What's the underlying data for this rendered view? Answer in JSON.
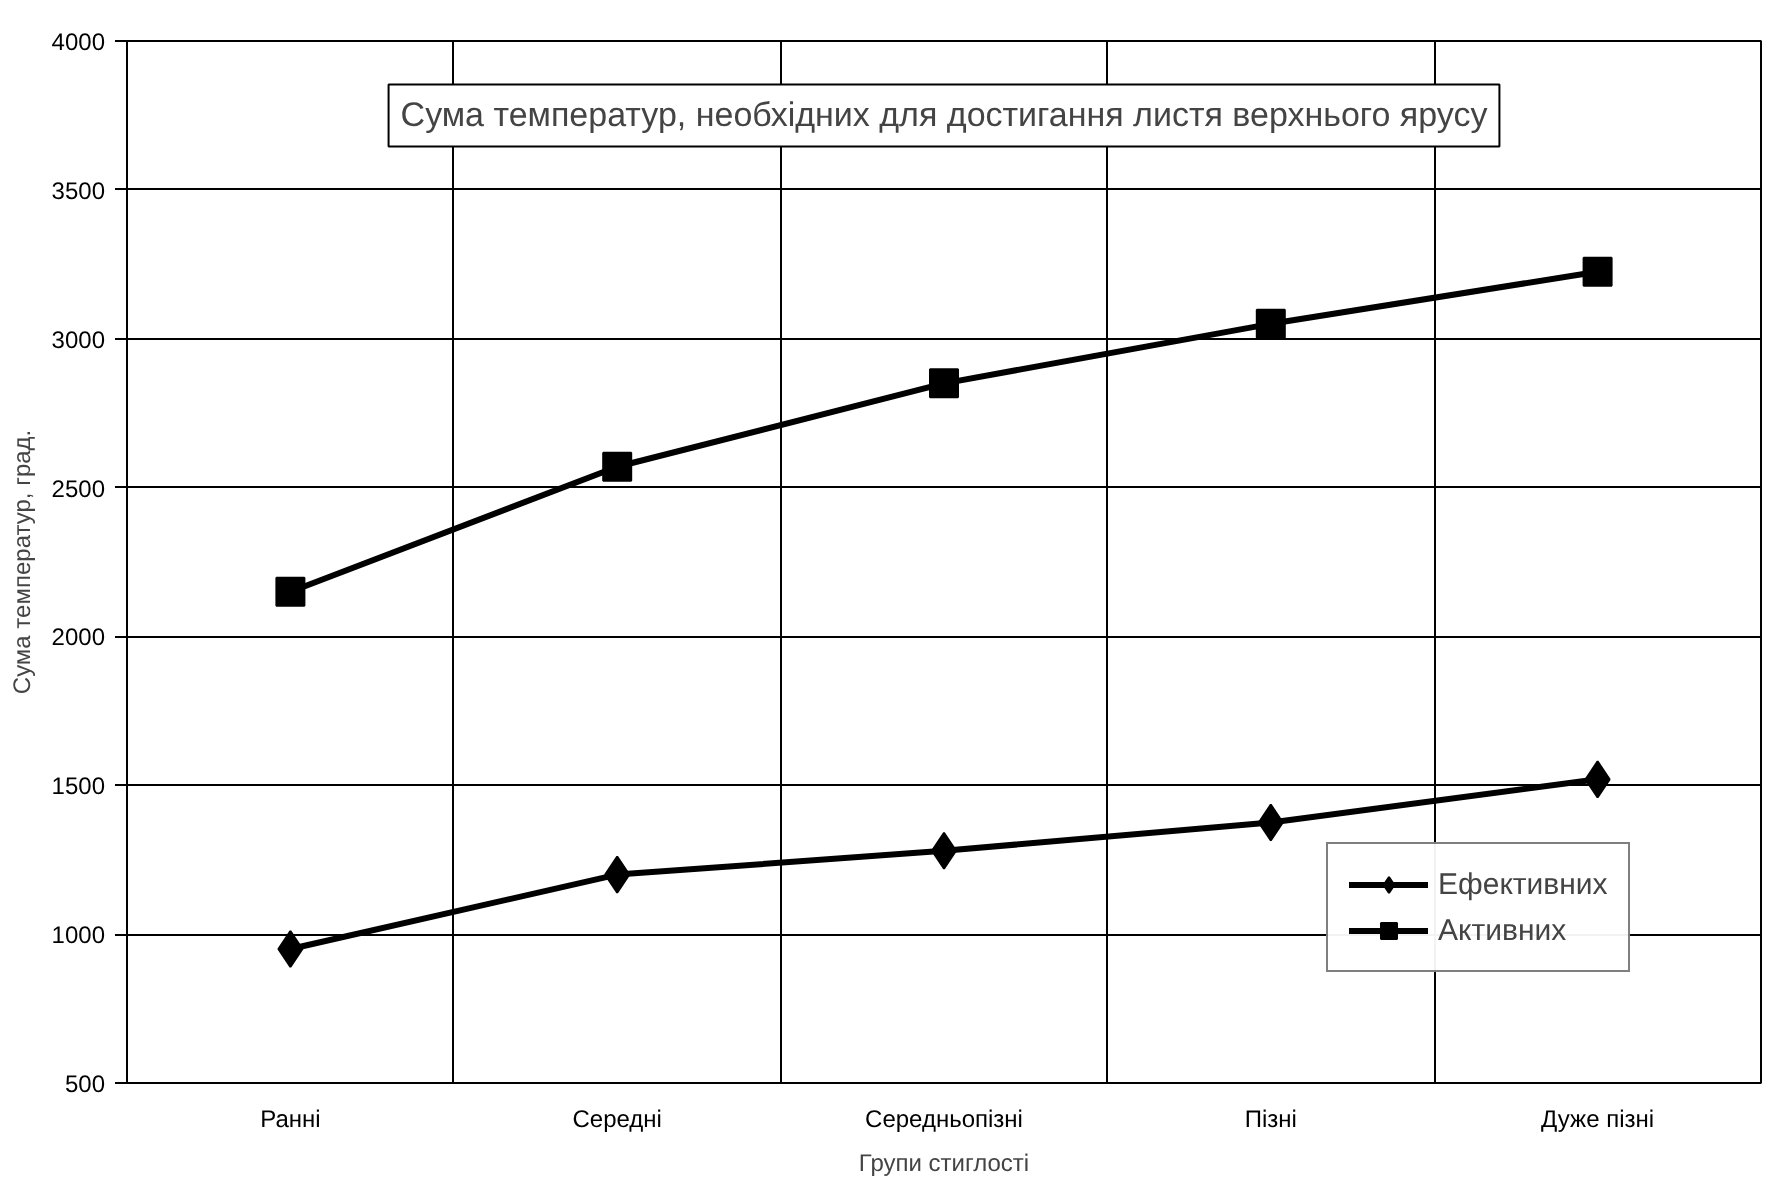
{
  "chart_data": {
    "type": "line",
    "title": "Сума температур, необхідних для достигання листя верхнього ярусу",
    "xlabel": "Групи стиглості",
    "ylabel": "Сума температур, град.",
    "categories": [
      "Ранні",
      "Середні",
      "Середньопізні",
      "Пізні",
      "Дуже пізні"
    ],
    "series": [
      {
        "name": "Ефективних",
        "color": "#000000",
        "marker": "diamond",
        "values": [
          950,
          1200,
          1280,
          1375,
          1520
        ]
      },
      {
        "name": "Активних",
        "color": "#000000",
        "marker": "square",
        "values": [
          2150,
          2570,
          2850,
          3050,
          3225
        ]
      }
    ],
    "ylim": [
      500,
      4000
    ],
    "yticks": [
      500,
      1000,
      1500,
      2000,
      2500,
      3000,
      3500,
      4000
    ],
    "grid": true,
    "legend": "right",
    "line_style": "solid"
  }
}
